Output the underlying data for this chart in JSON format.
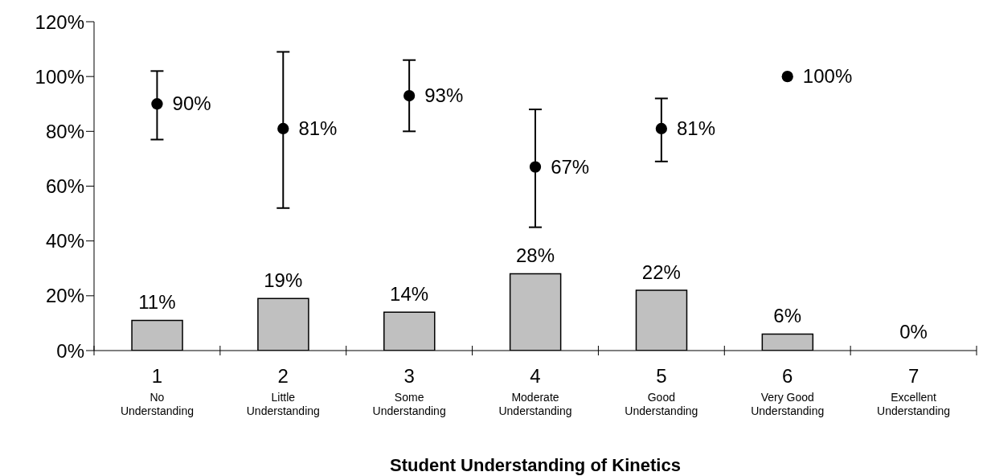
{
  "chart_data": {
    "type": "bar",
    "xlabel": "Student Understanding of Kinetics",
    "categories": [
      "1\nNo\nUnderstanding",
      "2\nLittle\nUnderstanding",
      "3\nSome\nUnderstanding",
      "4\nModerate\nUnderstanding",
      "5\nGood\nUnderstanding",
      "6\nVery Good\nUnderstanding",
      "7\nExcellent\nUnderstanding"
    ],
    "series": [
      {
        "color": "#c0c0c0",
        "values": [
          11,
          19,
          14,
          28,
          22,
          6,
          0
        ],
        "value_labels": [
          "11%",
          "19%",
          "14%",
          "28%",
          "22%",
          "6%",
          "0%"
        ]
      },
      {
        "type": "scatter",
        "color": "#000000",
        "values": [
          90,
          81,
          93,
          67,
          81,
          100,
          null
        ],
        "value_labels": [
          "90%",
          "81%",
          "93%",
          "67%",
          "81%",
          "100%",
          null
        ],
        "errors": [
          [
            77,
            102
          ],
          [
            52,
            109
          ],
          [
            80,
            106
          ],
          [
            45,
            88
          ],
          [
            69,
            92
          ],
          null,
          null
        ]
      }
    ],
    "ylim": [
      0,
      120
    ],
    "yticks": [
      {
        "value": 0,
        "label": "0%"
      },
      {
        "value": 20,
        "label": "20%"
      },
      {
        "value": 40,
        "label": "40%"
      },
      {
        "value": 60,
        "label": "60%"
      },
      {
        "value": 80,
        "label": "80%"
      },
      {
        "value": 100,
        "label": "100%"
      },
      {
        "value": 120,
        "label": "120%"
      }
    ],
    "grid": false,
    "legend": false,
    "marker": "circle"
  }
}
